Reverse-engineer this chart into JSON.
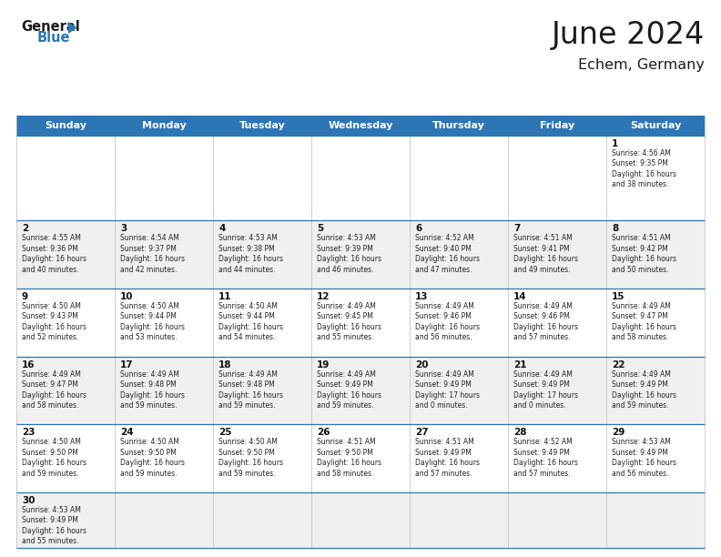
{
  "title": "June 2024",
  "subtitle": "Echem, Germany",
  "header_bg": "#2E75B6",
  "header_text_color": "#FFFFFF",
  "day_headers": [
    "Sunday",
    "Monday",
    "Tuesday",
    "Wednesday",
    "Thursday",
    "Friday",
    "Saturday"
  ],
  "alt_row_color": "#F0F0F0",
  "white_row_color": "#FFFFFF",
  "blue_border_color": "#2E75B6",
  "light_border_color": "#BBBBBB",
  "text_color": "#222222",
  "calendar": [
    [
      {
        "day": "",
        "info": ""
      },
      {
        "day": "",
        "info": ""
      },
      {
        "day": "",
        "info": ""
      },
      {
        "day": "",
        "info": ""
      },
      {
        "day": "",
        "info": ""
      },
      {
        "day": "",
        "info": ""
      },
      {
        "day": "1",
        "info": "Sunrise: 4:56 AM\nSunset: 9:35 PM\nDaylight: 16 hours\nand 38 minutes."
      }
    ],
    [
      {
        "day": "2",
        "info": "Sunrise: 4:55 AM\nSunset: 9:36 PM\nDaylight: 16 hours\nand 40 minutes."
      },
      {
        "day": "3",
        "info": "Sunrise: 4:54 AM\nSunset: 9:37 PM\nDaylight: 16 hours\nand 42 minutes."
      },
      {
        "day": "4",
        "info": "Sunrise: 4:53 AM\nSunset: 9:38 PM\nDaylight: 16 hours\nand 44 minutes."
      },
      {
        "day": "5",
        "info": "Sunrise: 4:53 AM\nSunset: 9:39 PM\nDaylight: 16 hours\nand 46 minutes."
      },
      {
        "day": "6",
        "info": "Sunrise: 4:52 AM\nSunset: 9:40 PM\nDaylight: 16 hours\nand 47 minutes."
      },
      {
        "day": "7",
        "info": "Sunrise: 4:51 AM\nSunset: 9:41 PM\nDaylight: 16 hours\nand 49 minutes."
      },
      {
        "day": "8",
        "info": "Sunrise: 4:51 AM\nSunset: 9:42 PM\nDaylight: 16 hours\nand 50 minutes."
      }
    ],
    [
      {
        "day": "9",
        "info": "Sunrise: 4:50 AM\nSunset: 9:43 PM\nDaylight: 16 hours\nand 52 minutes."
      },
      {
        "day": "10",
        "info": "Sunrise: 4:50 AM\nSunset: 9:44 PM\nDaylight: 16 hours\nand 53 minutes."
      },
      {
        "day": "11",
        "info": "Sunrise: 4:50 AM\nSunset: 9:44 PM\nDaylight: 16 hours\nand 54 minutes."
      },
      {
        "day": "12",
        "info": "Sunrise: 4:49 AM\nSunset: 9:45 PM\nDaylight: 16 hours\nand 55 minutes."
      },
      {
        "day": "13",
        "info": "Sunrise: 4:49 AM\nSunset: 9:46 PM\nDaylight: 16 hours\nand 56 minutes."
      },
      {
        "day": "14",
        "info": "Sunrise: 4:49 AM\nSunset: 9:46 PM\nDaylight: 16 hours\nand 57 minutes."
      },
      {
        "day": "15",
        "info": "Sunrise: 4:49 AM\nSunset: 9:47 PM\nDaylight: 16 hours\nand 58 minutes."
      }
    ],
    [
      {
        "day": "16",
        "info": "Sunrise: 4:49 AM\nSunset: 9:47 PM\nDaylight: 16 hours\nand 58 minutes."
      },
      {
        "day": "17",
        "info": "Sunrise: 4:49 AM\nSunset: 9:48 PM\nDaylight: 16 hours\nand 59 minutes."
      },
      {
        "day": "18",
        "info": "Sunrise: 4:49 AM\nSunset: 9:48 PM\nDaylight: 16 hours\nand 59 minutes."
      },
      {
        "day": "19",
        "info": "Sunrise: 4:49 AM\nSunset: 9:49 PM\nDaylight: 16 hours\nand 59 minutes."
      },
      {
        "day": "20",
        "info": "Sunrise: 4:49 AM\nSunset: 9:49 PM\nDaylight: 17 hours\nand 0 minutes."
      },
      {
        "day": "21",
        "info": "Sunrise: 4:49 AM\nSunset: 9:49 PM\nDaylight: 17 hours\nand 0 minutes."
      },
      {
        "day": "22",
        "info": "Sunrise: 4:49 AM\nSunset: 9:49 PM\nDaylight: 16 hours\nand 59 minutes."
      }
    ],
    [
      {
        "day": "23",
        "info": "Sunrise: 4:50 AM\nSunset: 9:50 PM\nDaylight: 16 hours\nand 59 minutes."
      },
      {
        "day": "24",
        "info": "Sunrise: 4:50 AM\nSunset: 9:50 PM\nDaylight: 16 hours\nand 59 minutes."
      },
      {
        "day": "25",
        "info": "Sunrise: 4:50 AM\nSunset: 9:50 PM\nDaylight: 16 hours\nand 59 minutes."
      },
      {
        "day": "26",
        "info": "Sunrise: 4:51 AM\nSunset: 9:50 PM\nDaylight: 16 hours\nand 58 minutes."
      },
      {
        "day": "27",
        "info": "Sunrise: 4:51 AM\nSunset: 9:49 PM\nDaylight: 16 hours\nand 57 minutes."
      },
      {
        "day": "28",
        "info": "Sunrise: 4:52 AM\nSunset: 9:49 PM\nDaylight: 16 hours\nand 57 minutes."
      },
      {
        "day": "29",
        "info": "Sunrise: 4:53 AM\nSunset: 9:49 PM\nDaylight: 16 hours\nand 56 minutes."
      }
    ],
    [
      {
        "day": "30",
        "info": "Sunrise: 4:53 AM\nSunset: 9:49 PM\nDaylight: 16 hours\nand 55 minutes."
      },
      {
        "day": "",
        "info": ""
      },
      {
        "day": "",
        "info": ""
      },
      {
        "day": "",
        "info": ""
      },
      {
        "day": "",
        "info": ""
      },
      {
        "day": "",
        "info": ""
      },
      {
        "day": "",
        "info": ""
      }
    ]
  ]
}
